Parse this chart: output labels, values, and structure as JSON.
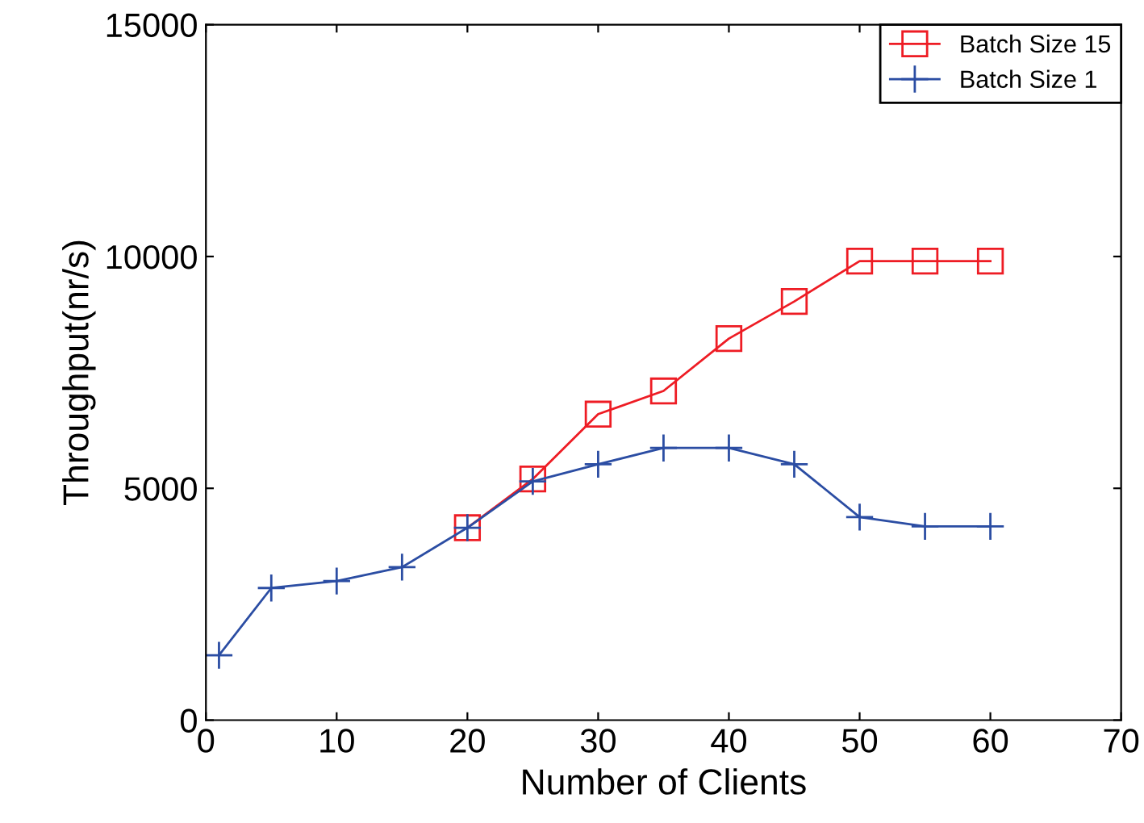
{
  "chart_data": {
    "type": "line",
    "xlabel": "Number of Clients",
    "ylabel": "Throughput(nr/s)",
    "xlim": [
      0,
      70
    ],
    "xticks": [
      0,
      10,
      20,
      30,
      40,
      50,
      60,
      70
    ],
    "ylim": [
      0,
      15000
    ],
    "yticks": [
      0,
      5000,
      10000,
      15000
    ],
    "grid": false,
    "legend": "top right",
    "line_style": "solid",
    "series": [
      {
        "name": "Batch Size 15",
        "color": "#ee1c24",
        "marker": "square",
        "x": [
          20,
          25,
          30,
          35,
          40,
          45,
          50,
          55,
          60
        ],
        "values": [
          4150,
          5200,
          6600,
          7100,
          8230,
          9030,
          9900,
          9900,
          9900
        ]
      },
      {
        "name": "Batch Size 1",
        "color": "#2b4da3",
        "marker": "cross",
        "x": [
          1,
          5,
          10,
          15,
          20,
          25,
          30,
          35,
          40,
          45,
          50,
          55,
          60
        ],
        "values": [
          1400,
          2850,
          3000,
          3300,
          4150,
          5150,
          5520,
          5870,
          5870,
          5520,
          4380,
          4180,
          4180
        ]
      }
    ]
  }
}
